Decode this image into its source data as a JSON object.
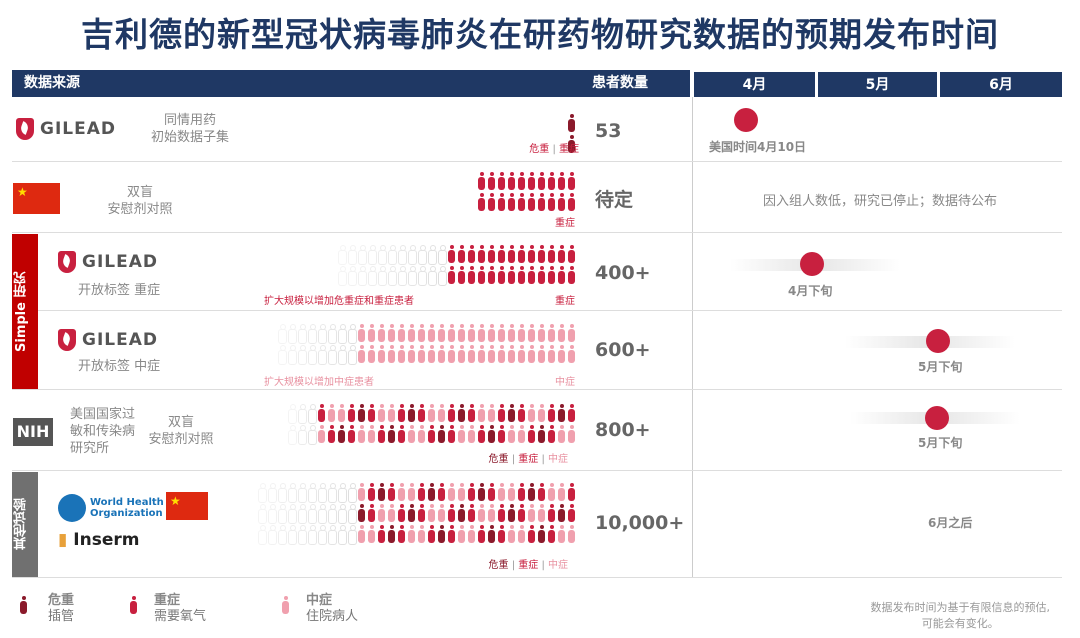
{
  "title": "吉利德的新型冠状病毒肺炎在研药物研究数据的预期发布时间",
  "header": {
    "source": "数据来源",
    "patients": "患者数量",
    "months": [
      "4月",
      "5月",
      "6月"
    ]
  },
  "colors": {
    "critical": "#8b1a2b",
    "severe": "#c8203f",
    "moderate": "#f0a0ae",
    "navy": "#1f3864"
  },
  "groups": {
    "simple": "Simple 研究",
    "other": "其他试验"
  },
  "rows": [
    {
      "org": "GILEAD",
      "desc": [
        "同情用药",
        "初始数据子集"
      ],
      "count": "53",
      "sev": [
        "危重",
        "重症"
      ],
      "people": {
        "rows": 2,
        "cols": 1,
        "faded": 0,
        "pattern": "CS"
      },
      "timeline": "美国时间4月10日"
    },
    {
      "org": "中国",
      "desc": [
        "双盲",
        "安慰剂对照"
      ],
      "count": "待定",
      "sev": [
        "重症"
      ],
      "people": {
        "rows": 2,
        "cols": 10,
        "faded": 0,
        "pattern": "S"
      },
      "timeline": "因入组人数低，研究已停止；数据待公布"
    },
    {
      "org": "GILEAD",
      "desc": [
        "开放标签 重症"
      ],
      "count": "400+",
      "note": "扩大规模以增加危重症和重症患者",
      "sev": [
        "重症"
      ],
      "people": {
        "rows": 2,
        "cols": 24,
        "faded": 11,
        "pattern": "S"
      },
      "timeline": "4月下旬"
    },
    {
      "org": "GILEAD",
      "desc": [
        "开放标签 中症"
      ],
      "count": "600+",
      "note": "扩大规模以增加中症患者",
      "sev": [
        "中症"
      ],
      "people": {
        "rows": 2,
        "cols": 30,
        "faded": 8,
        "pattern": "M"
      },
      "timeline": "5月下旬"
    },
    {
      "org": "NIH",
      "org_full": [
        "美国国家过",
        "敏和传染病",
        "研究所"
      ],
      "desc": [
        "双盲",
        "安慰剂对照"
      ],
      "count": "800+",
      "sev": [
        "危重",
        "重症",
        "中症"
      ],
      "people": {
        "rows": 2,
        "cols": 29,
        "faded": 3,
        "pattern": "MSCSM"
      },
      "timeline": "5月下旬"
    },
    {
      "org": "World Health Organization",
      "org2": "Inserm",
      "flag": "中国",
      "count": "10,000+",
      "sev": [
        "危重",
        "重症",
        "中症"
      ],
      "people": {
        "rows": 3,
        "cols": 32,
        "faded": 10,
        "pattern": "MSCSM"
      },
      "timeline": "6月之后"
    }
  ],
  "legend": [
    {
      "label": "危重",
      "sub": "插管",
      "level": "C"
    },
    {
      "label": "重症",
      "sub": "需要氧气",
      "level": "S"
    },
    {
      "label": "中症",
      "sub": "住院病人",
      "level": "M"
    }
  ],
  "footnote": [
    "数据发布时间为基于有限信息的预估,",
    "可能会有变化。"
  ]
}
